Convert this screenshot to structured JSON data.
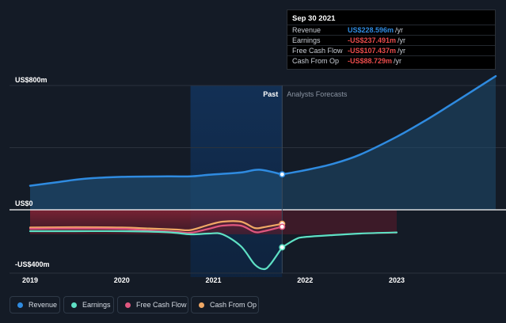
{
  "chart_data": {
    "type": "area",
    "y_axis": {
      "top_label": "US$800m",
      "zero_label": "US$0",
      "bottom_label": "-US$400m",
      "ylim": [
        -400,
        800
      ]
    },
    "x_axis": {
      "ticks": [
        "2019",
        "2020",
        "2021",
        "2022",
        "2023"
      ],
      "xlim": [
        2019,
        2024.08
      ]
    },
    "past_label": "Past",
    "forecast_label": "Analysts Forecasts",
    "divider_x": 2021.75,
    "past_band_start": 2020.75,
    "series": [
      {
        "name": "Revenue",
        "color": "#2f8be0",
        "fill": true,
        "x": [
          2019,
          2019.3,
          2019.6,
          2020,
          2020.5,
          2020.75,
          2020.95,
          2021.3,
          2021.5,
          2021.75
        ],
        "y": [
          155,
          178,
          200,
          212,
          215,
          215,
          225,
          240,
          258,
          228
        ]
      },
      {
        "name": "Revenue Forecast",
        "color": "#2f8be0",
        "fill": true,
        "x": [
          2021.75,
          2022,
          2022.3,
          2022.6,
          2023,
          2023.3,
          2023.6,
          2024.08
        ],
        "y": [
          228,
          255,
          295,
          355,
          470,
          570,
          680,
          860
        ]
      },
      {
        "name": "Earnings",
        "color": "#5ee0c4",
        "fill": false,
        "x": [
          2019,
          2019.5,
          2020,
          2020.5,
          2020.75,
          2020.95,
          2021.1,
          2021.3,
          2021.45,
          2021.55,
          2021.62,
          2021.75
        ],
        "y": [
          -135,
          -135,
          -135,
          -142,
          -155,
          -150,
          -155,
          -230,
          -345,
          -375,
          -345,
          -237
        ]
      },
      {
        "name": "Earnings Forecast",
        "color": "#5ee0c4",
        "fill": false,
        "x": [
          2021.75,
          2021.9,
          2022,
          2022.3,
          2022.6,
          2023
        ],
        "y": [
          -237,
          -185,
          -172,
          -160,
          -150,
          -143
        ]
      },
      {
        "name": "Free Cash Flow",
        "color": "#e0577f",
        "fill": false,
        "x": [
          2019,
          2019.5,
          2020,
          2020.3,
          2020.6,
          2020.75,
          2020.95,
          2021.1,
          2021.3,
          2021.45,
          2021.55,
          2021.75
        ],
        "y": [
          -120,
          -118,
          -120,
          -130,
          -140,
          -145,
          -120,
          -100,
          -100,
          -140,
          -135,
          -107
        ]
      },
      {
        "name": "Cash From Op",
        "color": "#f0a865",
        "fill": false,
        "x": [
          2019,
          2019.5,
          2020,
          2020.3,
          2020.6,
          2020.75,
          2020.95,
          2021.1,
          2021.3,
          2021.45,
          2021.55,
          2021.75
        ],
        "y": [
          -112,
          -110,
          -112,
          -118,
          -125,
          -128,
          -95,
          -75,
          -75,
          -115,
          -110,
          -89
        ]
      }
    ],
    "forecast_negative_region": {
      "x": [
        2021.75,
        2023
      ],
      "y": [
        0,
        -155
      ]
    }
  },
  "tooltip": {
    "date": "Sep 30 2021",
    "rows": [
      {
        "label": "Revenue",
        "value": "US$228.596m",
        "unit": "/yr",
        "color": "#2f8be0"
      },
      {
        "label": "Earnings",
        "value": "-US$237.491m",
        "unit": "/yr",
        "color": "#e84b4b"
      },
      {
        "label": "Free Cash Flow",
        "value": "-US$107.437m",
        "unit": "/yr",
        "color": "#e84b4b"
      },
      {
        "label": "Cash From Op",
        "value": "-US$88.729m",
        "unit": "/yr",
        "color": "#e84b4b"
      }
    ]
  },
  "legend": [
    {
      "label": "Revenue",
      "color": "#2f8be0"
    },
    {
      "label": "Earnings",
      "color": "#5ee0c4"
    },
    {
      "label": "Free Cash Flow",
      "color": "#e0577f"
    },
    {
      "label": "Cash From Op",
      "color": "#f0a865"
    }
  ]
}
